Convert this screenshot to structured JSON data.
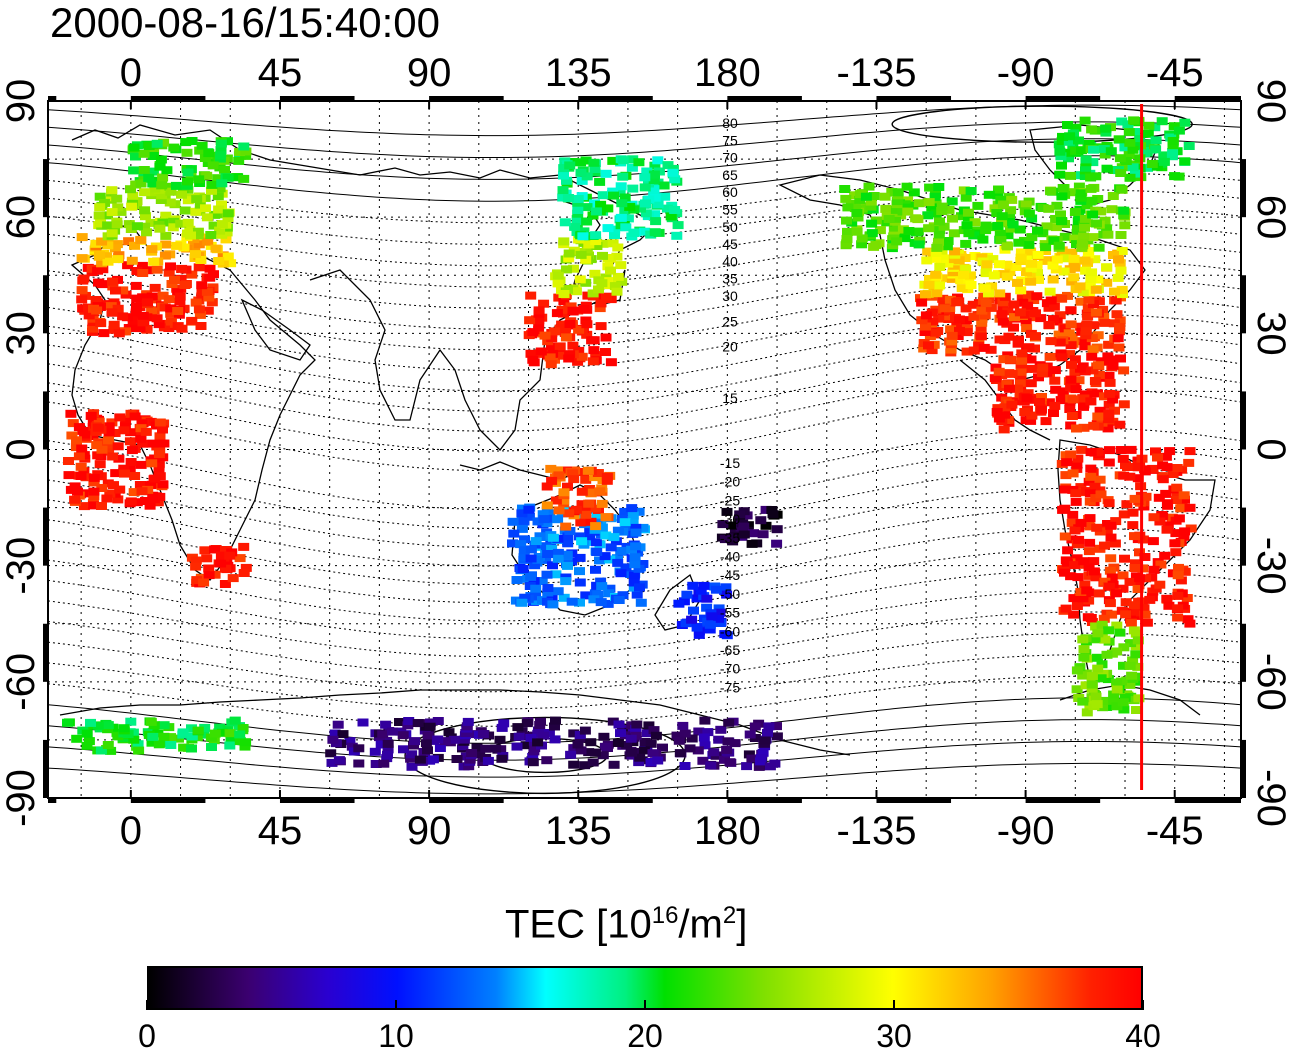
{
  "title": "2000-08-16/15:40:00",
  "map": {
    "projection": "equirectangular",
    "lon_range": [
      -25,
      335
    ],
    "lat_range": [
      -90,
      90
    ],
    "grid": "dotted",
    "lon_ticks": [
      {
        "value": 0,
        "label": "0"
      },
      {
        "value": 45,
        "label": "45"
      },
      {
        "value": 90,
        "label": "90"
      },
      {
        "value": 135,
        "label": "135"
      },
      {
        "value": 180,
        "label": "180"
      },
      {
        "value": 225,
        "label": "-135"
      },
      {
        "value": 270,
        "label": "-90"
      },
      {
        "value": 315,
        "label": "-45"
      }
    ],
    "lat_ticks": [
      {
        "value": 90,
        "label": "90"
      },
      {
        "value": 60,
        "label": "60"
      },
      {
        "value": 30,
        "label": "30"
      },
      {
        "value": 0,
        "label": "0"
      },
      {
        "value": -30,
        "label": "-30"
      },
      {
        "value": -60,
        "label": "-60"
      },
      {
        "value": -90,
        "label": "-90"
      }
    ],
    "contour_labels_north": [
      "80",
      "75",
      "70",
      "65",
      "60",
      "55",
      "50",
      "45",
      "40",
      "35",
      "30",
      "25",
      "20",
      "15"
    ],
    "contour_labels_south": [
      "-15",
      "-20",
      "-25",
      "-30",
      "-35",
      "-40",
      "-45",
      "-50",
      "-55",
      "-60",
      "-65",
      "-70",
      "-75"
    ],
    "terminator_lon": -55,
    "terminator_color": "#ff0000"
  },
  "tec_clusters": [
    {
      "region": "europe-south",
      "lon": [
        -15,
        25
      ],
      "lat": [
        30,
        48
      ],
      "tec": 39
    },
    {
      "region": "europe-mid",
      "lon": [
        -15,
        30
      ],
      "lat": [
        48,
        55
      ],
      "tec": 33
    },
    {
      "region": "europe-north",
      "lon": [
        -10,
        30
      ],
      "lat": [
        55,
        68
      ],
      "tec": 26
    },
    {
      "region": "scandinavia",
      "lon": [
        0,
        35
      ],
      "lat": [
        68,
        80
      ],
      "tec": 22
    },
    {
      "region": "east-asia",
      "lon": [
        120,
        145
      ],
      "lat": [
        22,
        40
      ],
      "tec": 39
    },
    {
      "region": "japan-north",
      "lon": [
        128,
        148
      ],
      "lat": [
        40,
        55
      ],
      "tec": 27
    },
    {
      "region": "siberia",
      "lon": [
        130,
        165
      ],
      "lat": [
        55,
        75
      ],
      "tec": 19
    },
    {
      "region": "north-america-south",
      "lon": [
        238,
        300
      ],
      "lat": [
        25,
        40
      ],
      "tec": 38
    },
    {
      "region": "north-america-mid",
      "lon": [
        238,
        300
      ],
      "lat": [
        40,
        52
      ],
      "tec": 31
    },
    {
      "region": "canada",
      "lon": [
        215,
        300
      ],
      "lat": [
        52,
        68
      ],
      "tec": 23
    },
    {
      "region": "greenland",
      "lon": [
        280,
        320
      ],
      "lat": [
        70,
        85
      ],
      "tec": 21
    },
    {
      "region": "caribbean",
      "lon": [
        260,
        300
      ],
      "lat": [
        5,
        25
      ],
      "tec": 39
    },
    {
      "region": "south-america",
      "lon": [
        280,
        320
      ],
      "lat": [
        -45,
        0
      ],
      "tec": 39
    },
    {
      "region": "patagonia",
      "lon": [
        285,
        305
      ],
      "lat": [
        -68,
        -45
      ],
      "tec": 24
    },
    {
      "region": "australia",
      "lon": [
        115,
        155
      ],
      "lat": [
        -40,
        -15
      ],
      "tec": 13
    },
    {
      "region": "new-zealand",
      "lon": [
        165,
        180
      ],
      "lat": [
        -48,
        -35
      ],
      "tec": 10
    },
    {
      "region": "indonesia",
      "lon": [
        125,
        145
      ],
      "lat": [
        -20,
        -5
      ],
      "tec": 37
    },
    {
      "region": "africa-south",
      "lon": [
        18,
        35
      ],
      "lat": [
        -35,
        -25
      ],
      "tec": 39
    },
    {
      "region": "africa-west",
      "lon": [
        -20,
        10
      ],
      "lat": [
        -15,
        10
      ],
      "tec": 39
    },
    {
      "region": "antarctica-east",
      "lon": [
        60,
        195
      ],
      "lat": [
        -82,
        -70
      ],
      "tec": 4
    },
    {
      "region": "antarctica-west",
      "lon": [
        -20,
        35
      ],
      "lat": [
        -78,
        -70
      ],
      "tec": 21
    },
    {
      "region": "pacific-south",
      "lon": [
        178,
        195
      ],
      "lat": [
        -25,
        -15
      ],
      "tec": 2
    }
  ],
  "colorbar": {
    "title_prefix": "TEC  [10",
    "title_exp1": "16",
    "title_mid": "/m",
    "title_exp2": "2",
    "title_suffix": "]",
    "min": 0,
    "max": 40,
    "labels": [
      "0",
      "10",
      "20",
      "30",
      "40"
    ]
  }
}
